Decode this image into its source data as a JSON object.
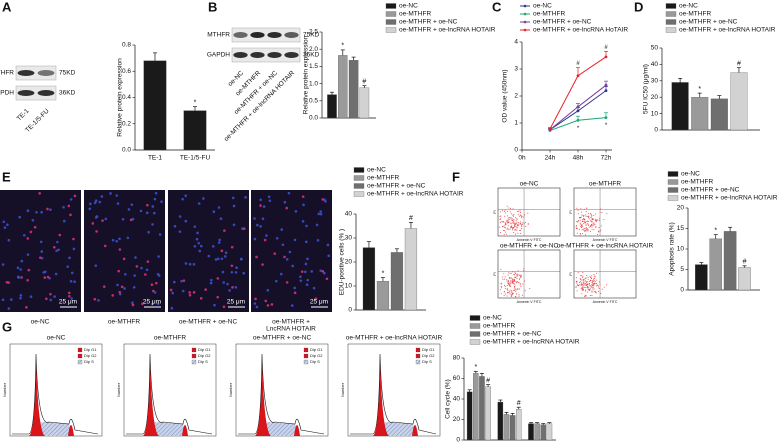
{
  "panel_labels": [
    "A",
    "B",
    "C",
    "D",
    "E",
    "F",
    "G"
  ],
  "blots": [
    {
      "rows": [
        "MTHFR",
        "GAPDH"
      ],
      "sizes": [
        "75KD",
        "36KD"
      ],
      "lanes": [
        "TE-1",
        "TE-1/5-FU"
      ]
    },
    {
      "rows": [
        "MTHFR",
        "GAPDH"
      ],
      "sizes": [
        "75KD",
        "36KD"
      ],
      "lanes": [
        "oe-NC",
        "oe-MTHFR",
        "oe-MTHFR + oe-NC",
        "oe-MTHFR + oe-lncRNA HOTAIR"
      ]
    }
  ],
  "micrographs": {
    "labels": [
      [
        "oe-NC"
      ],
      [
        "oe-MTHFR"
      ],
      [
        "oe-MTHFR + oe-NC"
      ],
      [
        "oe-MTHFR +",
        "LncRNA HOTAIR"
      ]
    ],
    "scale": "25 μm"
  },
  "flow": {
    "titles": [
      "oe-NC",
      "oe-MTHFR",
      "oe-MTHFR + oe-NC",
      "oe-MTHFR + oe-lncRNA HOTAIR"
    ],
    "x_label": "Annexin V FITC",
    "y_label": "PI"
  },
  "histograms": {
    "titles": [
      "oe-NC",
      "oe-MTHFR",
      "oe-MTHFR + oe-NC",
      "oe-MTHFR + oe-lncRNA HOTAIR"
    ],
    "y_label": "Number",
    "legend": [
      "Dip G1",
      "Dip G2",
      "Dip S"
    ]
  },
  "chart_data": [
    {
      "type": "bar",
      "y_label": "Relative protein expression",
      "categories": [
        "TE-1",
        "TE-1/5-FU"
      ],
      "values": [
        0.68,
        0.3
      ],
      "errors": [
        0.06,
        0.03
      ],
      "annotations": [
        null,
        "*"
      ],
      "color": "#1a1a1a",
      "ylim": [
        0,
        0.8
      ],
      "yticks": [
        {
          "value": 0,
          "label": "0.0"
        },
        0.2,
        0.4,
        0.6,
        0.8
      ]
    },
    {
      "type": "bar",
      "y_label": "Relative protein expression",
      "series": [
        {
          "name": "oe-NC",
          "color": "#1a1a1a",
          "values": [
            0.68
          ],
          "errors": [
            0.07
          ]
        },
        {
          "name": "oe-MTHFR",
          "color": "#9a9a9a",
          "values": [
            1.82
          ],
          "errors": [
            0.16
          ],
          "annotations": [
            "*"
          ]
        },
        {
          "name": "oe-MTHFR + oe-NC",
          "color": "#6f6f6f",
          "values": [
            1.68
          ],
          "errors": [
            0.09
          ]
        },
        {
          "name": "oe-MTHFR + oe-lncRNA HOTAIR",
          "color": "#d2d2d2",
          "values": [
            0.88
          ],
          "errors": [
            0.06
          ],
          "annotations": [
            "#"
          ]
        }
      ],
      "ylim": [
        0,
        2.5
      ],
      "yticks": [
        {
          "value": 0,
          "label": "0.0"
        },
        0.5,
        {
          "value": 1,
          "label": "1.0"
        },
        1.5,
        {
          "value": 2,
          "label": "2.0"
        },
        2.5
      ]
    },
    {
      "type": "line",
      "y_label": "OD value (450nm)",
      "categories": [
        "0h",
        "24h",
        "48h",
        "72h"
      ],
      "series": [
        {
          "name": "oe-NC",
          "color": "#2b3990",
          "values": [
            null,
            0.75,
            1.45,
            2.2
          ],
          "errors": [
            null,
            0.04,
            0.12,
            0.15
          ]
        },
        {
          "name": "oe-MTHFR",
          "color": "#19a974",
          "values": [
            null,
            0.72,
            1.1,
            1.2
          ],
          "errors": [
            null,
            0.04,
            0.15,
            0.18
          ],
          "annotations": [
            null,
            null,
            "*",
            "*"
          ]
        },
        {
          "name": "oe-MTHFR + oe-NC",
          "color": "#7a3e9d",
          "values": [
            null,
            0.75,
            1.6,
            2.4
          ],
          "errors": [
            null,
            0.04,
            0.12,
            0.15
          ]
        },
        {
          "name": "oe-MTHFR + oe-lncRNA HoTAIR",
          "color": "#e8212b",
          "values": [
            null,
            0.78,
            2.75,
            3.45
          ],
          "errors": [
            null,
            0.05,
            0.3,
            0.2
          ],
          "annotations": [
            null,
            null,
            "#",
            "#"
          ]
        }
      ],
      "ylim": [
        0,
        4
      ],
      "yticks": [
        0,
        1,
        2,
        3,
        4
      ]
    },
    {
      "type": "bar",
      "y_label": "5FU IC50 (μg/ml)",
      "series": [
        {
          "name": "oe-NC",
          "color": "#1a1a1a",
          "values": [
            29
          ],
          "errors": [
            2.5
          ]
        },
        {
          "name": "oe-MTHFR",
          "color": "#9a9a9a",
          "values": [
            20
          ],
          "errors": [
            2.5
          ],
          "annotations": [
            "*"
          ]
        },
        {
          "name": "oe-MTHFR + oe-NC",
          "color": "#6f6f6f",
          "values": [
            19
          ],
          "errors": [
            2
          ]
        },
        {
          "name": "oe-MTHFR + oe-lncRNA HOTAIR",
          "color": "#d2d2d2",
          "values": [
            35
          ],
          "errors": [
            3
          ],
          "annotations": [
            "#"
          ]
        }
      ],
      "ylim": [
        0,
        50
      ],
      "yticks": [
        0,
        10,
        20,
        30,
        40,
        50
      ]
    },
    {
      "type": "bar",
      "y_label": "EDU-positive cells (% )",
      "series": [
        {
          "name": "oe-NC",
          "color": "#1a1a1a",
          "values": [
            26
          ],
          "errors": [
            2.5
          ]
        },
        {
          "name": "oe-MTHFR",
          "color": "#9a9a9a",
          "values": [
            12
          ],
          "errors": [
            1.5
          ],
          "annotations": [
            "*"
          ]
        },
        {
          "name": "oe-MTHFR + oe-NC",
          "color": "#6f6f6f",
          "values": [
            24
          ],
          "errors": [
            1.5
          ]
        },
        {
          "name": "oe-MTHFR + oe-lncRNA HOTAIR",
          "color": "#d2d2d2",
          "values": [
            34
          ],
          "errors": [
            2.5
          ],
          "annotations": [
            "#"
          ]
        }
      ],
      "ylim": [
        0,
        40
      ],
      "yticks": [
        0,
        10,
        20,
        30,
        40
      ]
    },
    {
      "type": "bar",
      "y_label": "Apoptosis rate (%)",
      "series": [
        {
          "name": "oe-NC",
          "color": "#1a1a1a",
          "values": [
            6.2
          ],
          "errors": [
            0.5
          ]
        },
        {
          "name": "oe-MTHFR",
          "color": "#9a9a9a",
          "values": [
            12.5
          ],
          "errors": [
            1
          ],
          "annotations": [
            "*"
          ]
        },
        {
          "name": "oe-MTHFR + oe-NC",
          "color": "#6f6f6f",
          "values": [
            14.3
          ],
          "errors": [
            1
          ]
        },
        {
          "name": "oe-MTHFR + oe-lncRNA HOTAIR",
          "color": "#d2d2d2",
          "values": [
            5.5
          ],
          "errors": [
            0.4
          ],
          "annotations": [
            "#"
          ]
        }
      ],
      "ylim": [
        0,
        20
      ],
      "yticks": [
        0,
        5,
        10,
        15,
        20
      ]
    },
    {
      "type": "bar",
      "y_label": "Cell cycle (%)",
      "series": [
        {
          "name": "oe-NC",
          "color": "#1a1a1a",
          "values": [
            47,
            37,
            16
          ],
          "errors": [
            2,
            2,
            1
          ]
        },
        {
          "name": "oe-MTHFR",
          "color": "#9a9a9a",
          "values": [
            65,
            25,
            16
          ],
          "errors": [
            2,
            2,
            1
          ],
          "annotations": [
            "*",
            null,
            null
          ]
        },
        {
          "name": "oe-MTHFR + oe-NC",
          "color": "#6f6f6f",
          "values": [
            62,
            24,
            15
          ],
          "errors": [
            3,
            2,
            1
          ]
        },
        {
          "name": "oe-MTHFR + oe-lncRNA HOTAIR",
          "color": "#d2d2d2",
          "values": [
            52,
            30,
            16
          ],
          "errors": [
            2,
            2,
            1
          ],
          "annotations": [
            "#",
            "#",
            null
          ]
        }
      ],
      "ylim": [
        0,
        80
      ],
      "yticks": [
        0,
        20,
        40,
        60,
        80
      ]
    }
  ]
}
